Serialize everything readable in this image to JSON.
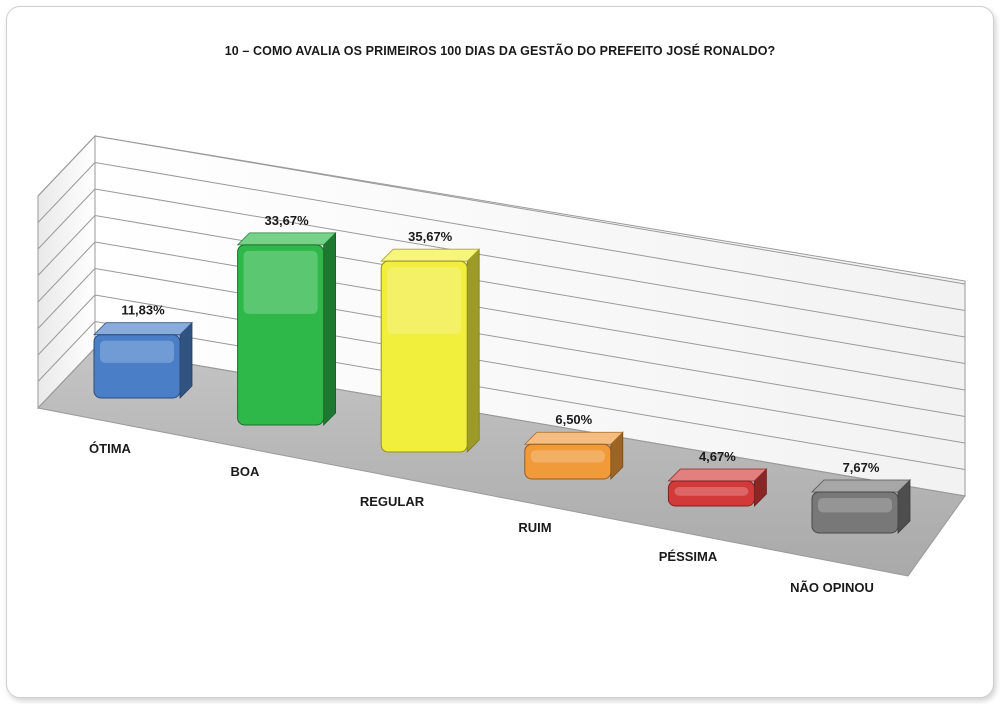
{
  "chart_data": {
    "type": "bar",
    "title": "10 – COMO AVALIA OS PRIMEIROS 100 DIAS DA GESTÃO DO PREFEITO JOSÉ RONALDO?",
    "categories": [
      "ÓTIMA",
      "BOA",
      "REGULAR",
      "RUIM",
      "PÉSSIMA",
      "NÃO OPINOU"
    ],
    "values": [
      11.83,
      33.67,
      35.67,
      6.5,
      4.67,
      7.67
    ],
    "value_labels": [
      "11,83%",
      "33,67%",
      "35,67%",
      "6,50%",
      "4,67%",
      "7,67%"
    ],
    "colors": [
      "#4a7fc8",
      "#2fb84a",
      "#f2ee3c",
      "#f09a3a",
      "#d23a3a",
      "#787878"
    ],
    "ylim": [
      0,
      40
    ],
    "grid": true,
    "style": "3d"
  }
}
